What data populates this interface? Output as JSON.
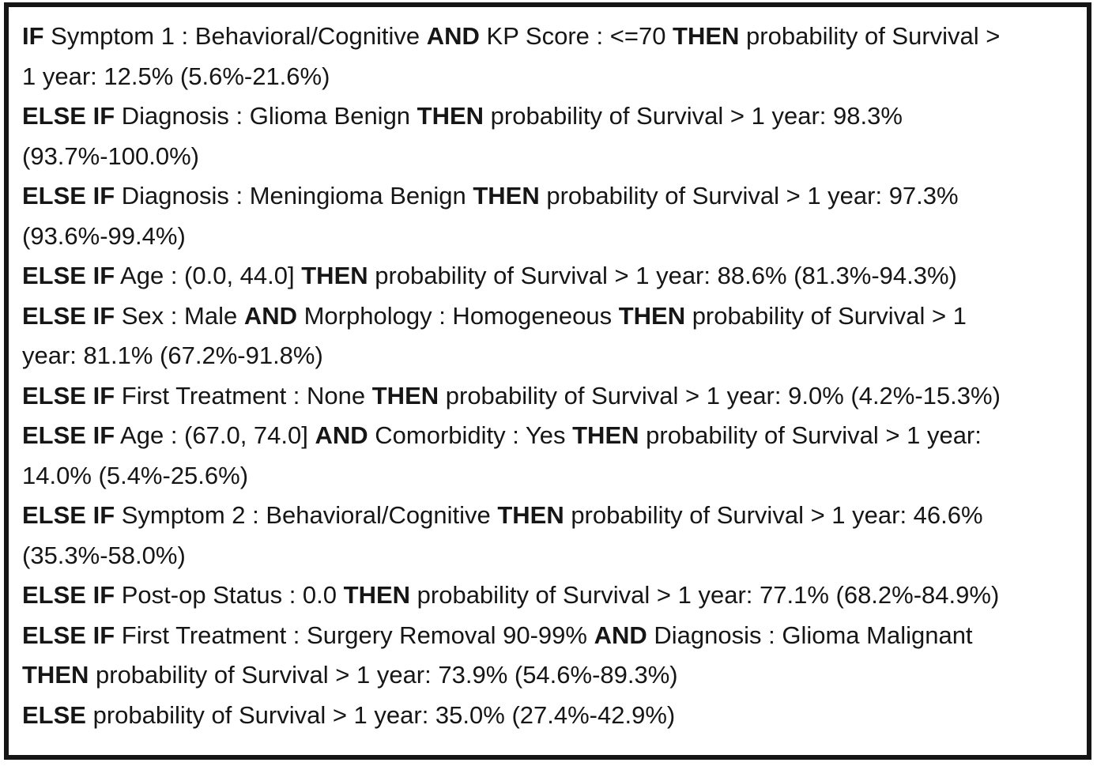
{
  "figure": {
    "kind": "rule-list",
    "background_color": "#ffffff",
    "border_color": "#151515",
    "text_color": "#161616",
    "bold_marker": "**",
    "outcome_label": "probability of Survival > 1 year",
    "lines": [
      "**IF** Symptom 1 : Behavioral/Cognitive **AND** KP Score : <=70 **THEN** probability of Survival >",
      "1 year: 12.5% (5.6%-21.6%)",
      "**ELSE IF** Diagnosis : Glioma Benign **THEN** probability of Survival > 1 year: 98.3%",
      "(93.7%-100.0%)",
      "**ELSE IF** Diagnosis : Meningioma Benign **THEN** probability of Survival > 1 year: 97.3%",
      "(93.6%-99.4%)",
      "**ELSE IF** Age : (0.0, 44.0] **THEN** probability of Survival > 1 year: 88.6% (81.3%-94.3%)",
      "**ELSE IF** Sex : Male **AND** Morphology : Homogeneous **THEN** probability of Survival > 1",
      "year: 81.1% (67.2%-91.8%)",
      "**ELSE IF** First Treatment : None **THEN** probability of Survival > 1 year: 9.0% (4.2%-15.3%)",
      "**ELSE IF** Age : (67.0, 74.0] **AND** Comorbidity : Yes **THEN** probability of Survival > 1 year:",
      "14.0% (5.4%-25.6%)",
      "**ELSE IF** Symptom 2 : Behavioral/Cognitive **THEN** probability of Survival > 1 year: 46.6%",
      "(35.3%-58.0%)",
      "**ELSE IF** Post-op Status : 0.0 **THEN** probability of Survival > 1 year: 77.1% (68.2%-84.9%)",
      "**ELSE IF** First Treatment : Surgery Removal 90-99% **AND** Diagnosis : Glioma Malignant",
      "**THEN** probability of Survival > 1 year: 73.9% (54.6%-89.3%)",
      "**ELSE** probability of Survival > 1 year: 35.0% (27.4%-42.9%)"
    ],
    "rules": [
      {
        "conditions": [
          "Symptom 1 : Behavioral/Cognitive",
          "KP Score : <=70"
        ],
        "probability": "12.5%",
        "ci": "5.6%-21.6%"
      },
      {
        "conditions": [
          "Diagnosis : Glioma Benign"
        ],
        "probability": "98.3%",
        "ci": "93.7%-100.0%"
      },
      {
        "conditions": [
          "Diagnosis : Meningioma Benign"
        ],
        "probability": "97.3%",
        "ci": "93.6%-99.4%"
      },
      {
        "conditions": [
          "Age : (0.0, 44.0]"
        ],
        "probability": "88.6%",
        "ci": "81.3%-94.3%"
      },
      {
        "conditions": [
          "Sex : Male",
          "Morphology : Homogeneous"
        ],
        "probability": "81.1%",
        "ci": "67.2%-91.8%"
      },
      {
        "conditions": [
          "First Treatment : None"
        ],
        "probability": "9.0%",
        "ci": "4.2%-15.3%"
      },
      {
        "conditions": [
          "Age : (67.0, 74.0]",
          "Comorbidity : Yes"
        ],
        "probability": "14.0%",
        "ci": "5.4%-25.6%"
      },
      {
        "conditions": [
          "Symptom 2 : Behavioral/Cognitive"
        ],
        "probability": "46.6%",
        "ci": "35.3%-58.0%"
      },
      {
        "conditions": [
          "Post-op Status : 0.0"
        ],
        "probability": "77.1%",
        "ci": "68.2%-84.9%"
      },
      {
        "conditions": [
          "First Treatment : Surgery Removal 90-99%",
          "Diagnosis : Glioma Malignant"
        ],
        "probability": "73.9%",
        "ci": "54.6%-89.3%"
      },
      {
        "conditions": [],
        "probability": "35.0%",
        "ci": "27.4%-42.9%"
      }
    ]
  }
}
